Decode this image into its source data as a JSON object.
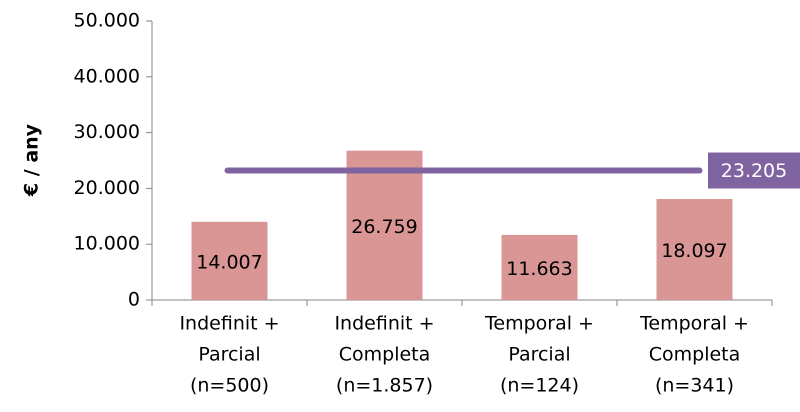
{
  "chart_data": {
    "type": "bar",
    "ylabel": "€ / any",
    "categories": [
      [
        "Indefinit +",
        "Parcial",
        "(n=500)"
      ],
      [
        "Indefinit +",
        "Completa",
        "(n=1.857)"
      ],
      [
        "Temporal +",
        "Parcial",
        "(n=124)"
      ],
      [
        "Temporal +",
        "Completa",
        "(n=341)"
      ]
    ],
    "values": [
      14007,
      26759,
      11663,
      18097
    ],
    "value_labels": [
      "14.007",
      "26.759",
      "11.663",
      "18.097"
    ],
    "color": "#d99694",
    "reference": {
      "value": 23205,
      "label": "23.205",
      "color": "#8064a2"
    },
    "ylim": [
      0,
      50000
    ],
    "yticks": [
      0,
      {
        "value": 10000,
        "label": "10.000"
      },
      {
        "value": 20000,
        "label": "20.000"
      },
      {
        "value": 30000,
        "label": "30.000"
      },
      {
        "value": 40000,
        "label": "40.000"
      },
      {
        "value": 50000,
        "label": "50.000"
      }
    ],
    "grid": false
  }
}
